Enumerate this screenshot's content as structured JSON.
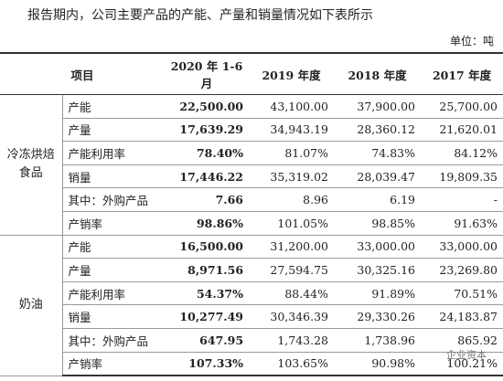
{
  "intro": "报告期内，公司主要产品的产能、产量和销量情况如下表所示",
  "unit": "单位：吨",
  "table": {
    "header": [
      "项目",
      "2020 年 1-6 月",
      "2019 年度",
      "2018 年度",
      "2017 年度"
    ],
    "groups": [
      {
        "name": "冷冻烘焙食品",
        "rows": [
          {
            "label": "产能",
            "values": [
              "22,500.00",
              "43,100.00",
              "37,900.00",
              "25,700.00"
            ]
          },
          {
            "label": "产量",
            "values": [
              "17,639.29",
              "34,943.19",
              "28,360.12",
              "21,620.01"
            ]
          },
          {
            "label": "产能利用率",
            "values": [
              "78.40%",
              "81.07%",
              "74.83%",
              "84.12%"
            ]
          },
          {
            "label": "销量",
            "values": [
              "17,446.22",
              "35,319.02",
              "28,039.47",
              "19,809.35"
            ]
          },
          {
            "label": "其中：外购产品",
            "values": [
              "7.66",
              "8.96",
              "6.19",
              "-"
            ]
          },
          {
            "label": "产销率",
            "values": [
              "98.86%",
              "101.05%",
              "98.85%",
              "91.63%"
            ]
          }
        ]
      },
      {
        "name": "奶油",
        "rows": [
          {
            "label": "产能",
            "values": [
              "16,500.00",
              "31,200.00",
              "33,000.00",
              "33,000.00"
            ]
          },
          {
            "label": "产量",
            "values": [
              "8,971.56",
              "27,594.75",
              "30,325.16",
              "23,269.80"
            ]
          },
          {
            "label": "产能利用率",
            "values": [
              "54.37%",
              "88.44%",
              "91.89%",
              "70.51%"
            ]
          },
          {
            "label": "销量",
            "values": [
              "10,277.49",
              "30,346.39",
              "29,330.26",
              "24,183.87"
            ]
          },
          {
            "label": "其中：外购产品",
            "values": [
              "647.95",
              "1,743.28",
              "1,738.96",
              "865.92"
            ]
          },
          {
            "label": "产销率",
            "values": [
              "107.33%",
              "103.65%",
              "90.98%",
              "100.21%"
            ]
          }
        ]
      }
    ]
  },
  "watermark": "企业资本"
}
